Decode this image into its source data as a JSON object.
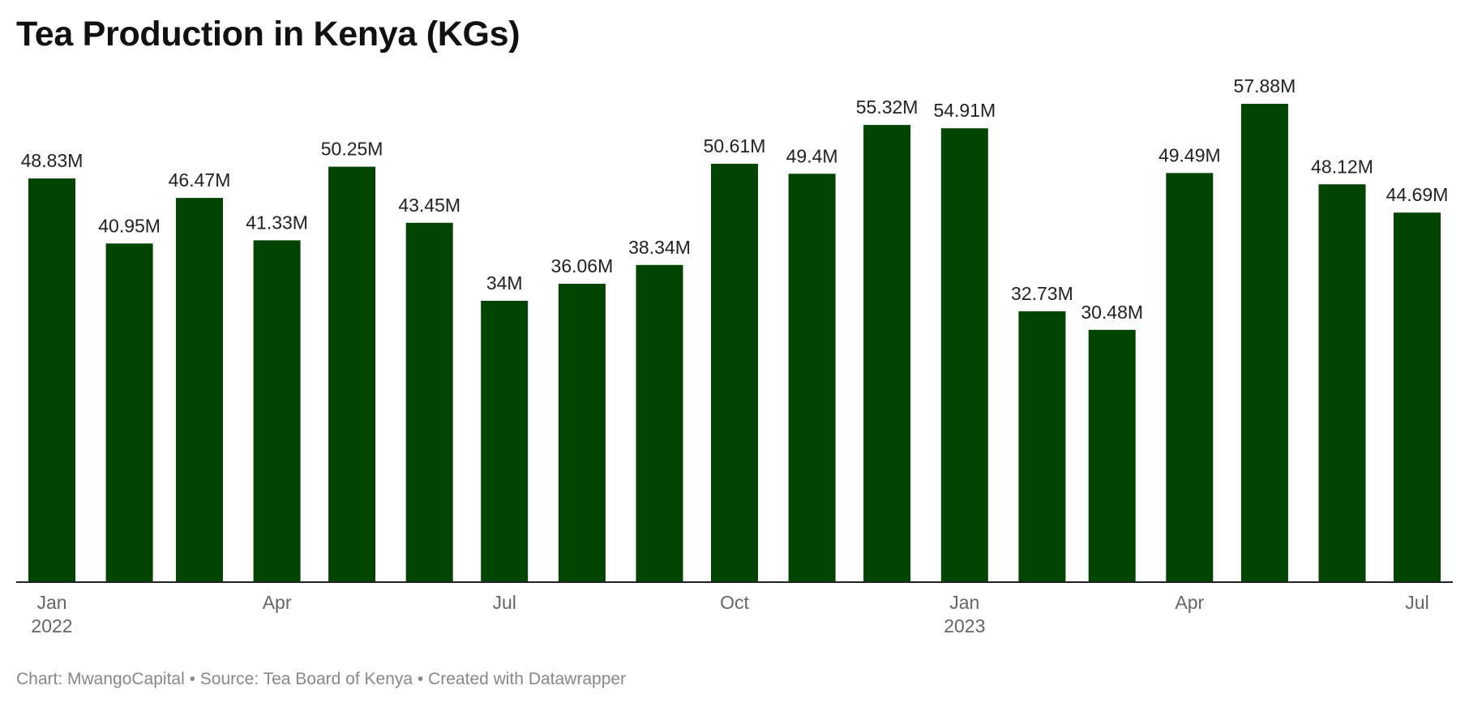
{
  "chart_data": {
    "type": "bar",
    "title": "Tea Production in Kenya (KGs)",
    "xlabel": "",
    "ylabel": "",
    "categories": [
      "2022-01",
      "2022-02",
      "2022-03",
      "2022-04",
      "2022-05",
      "2022-06",
      "2022-07",
      "2022-08",
      "2022-09",
      "2022-10",
      "2022-11",
      "2022-12",
      "2023-01",
      "2023-02",
      "2023-03",
      "2023-04",
      "2023-05",
      "2023-06",
      "2023-07"
    ],
    "values": [
      48830000,
      40950000,
      46470000,
      41330000,
      50250000,
      43450000,
      34000000,
      36060000,
      38340000,
      50610000,
      49400000,
      55320000,
      54910000,
      32730000,
      30480000,
      49490000,
      57880000,
      48120000,
      44690000
    ],
    "value_labels": [
      "48.83M",
      "40.95M",
      "46.47M",
      "41.33M",
      "50.25M",
      "43.45M",
      "34M",
      "36.06M",
      "38.34M",
      "50.61M",
      "49.4M",
      "55.32M",
      "54.91M",
      "32.73M",
      "30.48M",
      "49.49M",
      "57.88M",
      "48.12M",
      "44.69M"
    ],
    "x_ticks": [
      {
        "category": "2022-01",
        "label": "Jan",
        "year": "2022"
      },
      {
        "category": "2022-04",
        "label": "Apr"
      },
      {
        "category": "2022-07",
        "label": "Jul"
      },
      {
        "category": "2022-10",
        "label": "Oct"
      },
      {
        "category": "2023-01",
        "label": "Jan",
        "year": "2023"
      },
      {
        "category": "2023-04",
        "label": "Apr"
      },
      {
        "category": "2023-07",
        "label": "Jul"
      }
    ],
    "ylim": [
      0,
      57880000
    ],
    "grid": false,
    "legend": "none",
    "bar_color": "#024502"
  },
  "footer": "Chart: MwangoCapital • Source: Tea Board of Kenya • Created with Datawrapper"
}
